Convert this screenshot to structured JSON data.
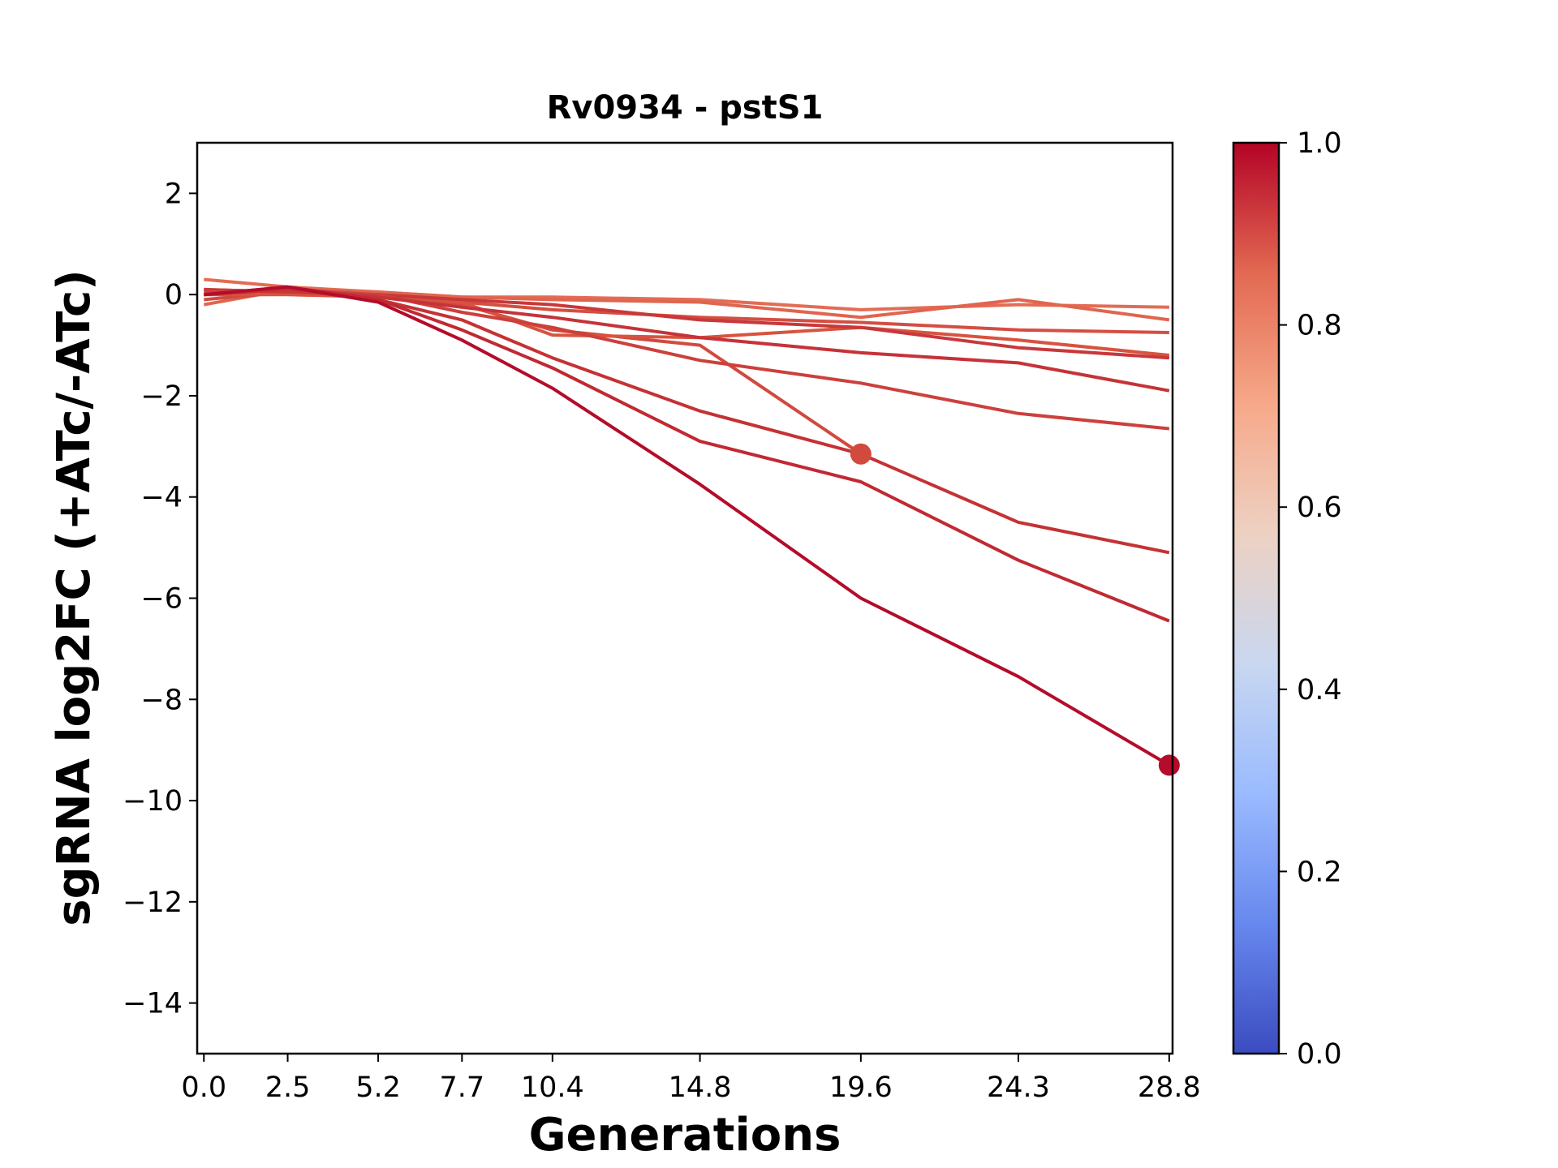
{
  "chart_data": {
    "type": "line",
    "title": "Rv0934 - pstS1",
    "xlabel": "Generations",
    "ylabel": "sgRNA log2FC (+ATc/-ATc)",
    "x": [
      0.0,
      2.5,
      5.2,
      7.7,
      10.4,
      14.8,
      19.6,
      24.3,
      28.8
    ],
    "x_tick_labels": [
      "0.0",
      "2.5",
      "5.2",
      "7.7",
      "10.4",
      "14.8",
      "19.6",
      "24.3",
      "28.8"
    ],
    "xlim": [
      -0.2,
      28.9
    ],
    "ylim": [
      -15,
      3
    ],
    "y_ticks": [
      2,
      0,
      -2,
      -4,
      -6,
      -8,
      -10,
      -12,
      -14
    ],
    "y_tick_labels": [
      "2",
      "0",
      "−2",
      "−4",
      "−6",
      "−8",
      "−10",
      "−12",
      "−14"
    ],
    "grid": false,
    "series": [
      {
        "values": [
          0.3,
          0.15,
          0.05,
          -0.05,
          -0.05,
          -0.1,
          -0.3,
          -0.2,
          -0.25
        ],
        "color": "#e36c55"
      },
      {
        "values": [
          -0.2,
          0.1,
          0.05,
          -0.05,
          -0.1,
          -0.15,
          -0.45,
          -0.1,
          -0.5
        ],
        "color": "#e0654f"
      },
      {
        "values": [
          0.1,
          0.05,
          0.0,
          -0.15,
          -0.3,
          -0.45,
          -0.55,
          -0.7,
          -0.75
        ],
        "color": "#d44e41"
      },
      {
        "values": [
          -0.1,
          0.05,
          0.0,
          -0.2,
          -0.7,
          -1.0,
          -3.15,
          null,
          null
        ],
        "color": "#d14a3e",
        "end_marker": true
      },
      {
        "values": [
          0.0,
          0.0,
          -0.05,
          -0.15,
          -0.8,
          -0.85,
          -0.65,
          -0.9,
          -1.2
        ],
        "color": "#d8533f"
      },
      {
        "values": [
          0.1,
          0.05,
          0.0,
          -0.1,
          -0.2,
          -0.5,
          -0.65,
          -1.05,
          -1.25
        ],
        "color": "#c8383a"
      },
      {
        "values": [
          0.05,
          0.1,
          0.0,
          -0.35,
          -0.65,
          -1.3,
          -1.75,
          -2.35,
          -2.65
        ],
        "color": "#cc403c"
      },
      {
        "values": [
          0.0,
          0.1,
          -0.05,
          -0.25,
          -0.45,
          -0.85,
          -1.15,
          -1.35,
          -1.9
        ],
        "color": "#c53338"
      },
      {
        "values": [
          0.0,
          0.1,
          -0.1,
          -0.5,
          -1.25,
          -2.3,
          -3.15,
          -4.5,
          -5.1
        ],
        "color": "#c53234"
      },
      {
        "values": [
          0.0,
          0.15,
          -0.1,
          -0.7,
          -1.45,
          -2.9,
          -3.7,
          -5.25,
          -6.45
        ],
        "color": "#c02a33"
      },
      {
        "values": [
          0.0,
          0.15,
          -0.15,
          -0.9,
          -1.85,
          -3.75,
          -6.0,
          -7.55,
          -9.3
        ],
        "color": "#b40c2a",
        "end_marker": true
      }
    ],
    "colorbar": {
      "range": [
        0.0,
        1.0
      ],
      "ticks": [
        "0.0",
        "0.2",
        "0.4",
        "0.6",
        "0.8",
        "1.0"
      ],
      "colormap": [
        "#3b4cc0",
        "#6788ee",
        "#9abbff",
        "#c9d7f0",
        "#edd1c2",
        "#f7a889",
        "#e26952",
        "#b40426"
      ]
    }
  }
}
